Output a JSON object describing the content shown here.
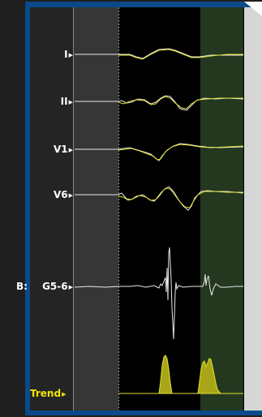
{
  "channels": [
    {
      "id": "I",
      "label": "I"
    },
    {
      "id": "II",
      "label": "II"
    },
    {
      "id": "V1",
      "label": "V1"
    },
    {
      "id": "V6",
      "label": "V6"
    },
    {
      "id": "BG56",
      "label": "G5-6"
    },
    {
      "id": "TREND",
      "label": "Trend"
    }
  ],
  "partial_label": "B:",
  "colors": {
    "frame": "#0b4a8a",
    "background": "#000000",
    "left_panel": "#242424",
    "gray_band": "#363636",
    "green_band": "#24381f",
    "trace": "#e8e8e8",
    "template": "#dede30",
    "trend_fill": "#a8a618",
    "trend_line": "#e0e030",
    "label": "#ffffff",
    "trend_label": "#f0e400",
    "scrollbar": "#d6d6d6"
  },
  "icons": [
    "channel-arrow-icon"
  ]
}
